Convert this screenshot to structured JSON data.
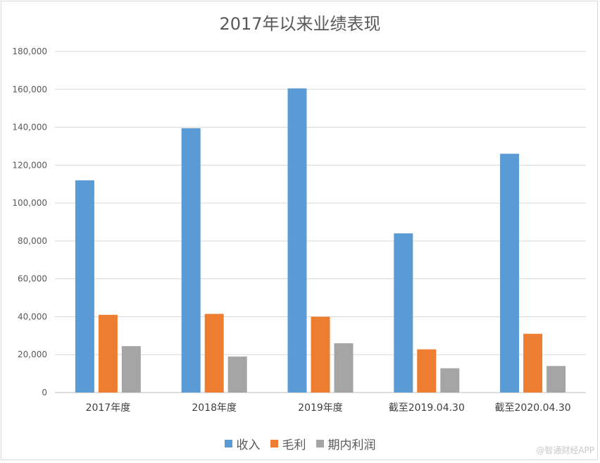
{
  "chart_data": {
    "type": "bar",
    "title": "2017年以来业绩表现",
    "categories": [
      "2017年度",
      "2018年度",
      "2019年度",
      "截至2019.04.30",
      "截至2020.04.30"
    ],
    "series": [
      {
        "name": "收入",
        "color": "#5b9bd5",
        "values": [
          112000,
          139500,
          160500,
          84000,
          126000
        ]
      },
      {
        "name": "毛利",
        "color": "#ed7d31",
        "values": [
          41000,
          41500,
          40000,
          22800,
          31000
        ]
      },
      {
        "name": "期内利润",
        "color": "#a5a5a5",
        "values": [
          24500,
          19000,
          26000,
          12800,
          14000
        ]
      }
    ],
    "ylim": [
      0,
      180000
    ],
    "yticks": [
      "0",
      "20,000",
      "40,000",
      "60,000",
      "80,000",
      "100,000",
      "120,000",
      "140,000",
      "160,000",
      "180,000"
    ],
    "grid": true,
    "legend_position": "bottom"
  },
  "watermark": "@智通财经APP"
}
